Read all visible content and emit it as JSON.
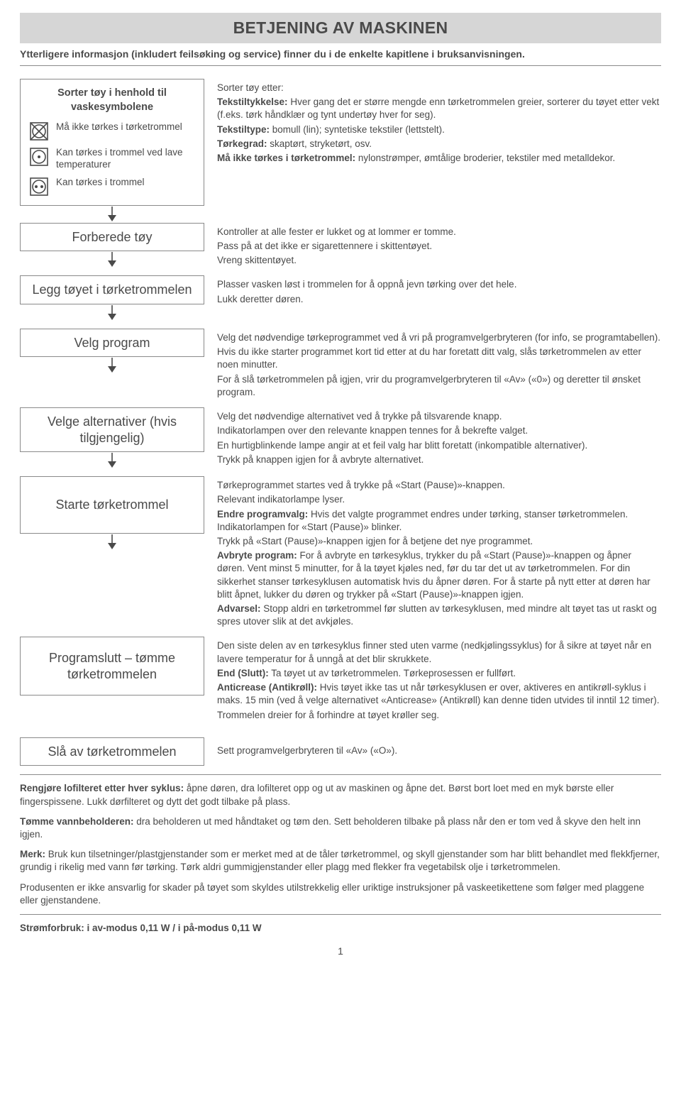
{
  "title": "BETJENING AV MASKINEN",
  "subtitle": "Ytterligere informasjon (inkludert feilsøking og service) finner du i de enkelte kapitlene i bruksanvisningen.",
  "sort_box": {
    "title": "Sorter tøy i henhold til vaskesymbolene",
    "rows": [
      {
        "label": "Må ikke tørkes i tørketrommel"
      },
      {
        "label": "Kan tørkes i trommel ved lave temperaturer"
      },
      {
        "label": "Kan tørkes i trommel"
      }
    ]
  },
  "sort_desc": {
    "intro": "Sorter tøy etter:",
    "l1a": "Tekstiltykkelse:",
    "l1b": " Hver gang det er større mengde enn tørketrommelen greier, sorterer du tøyet etter vekt (f.eks. tørk håndklær og tynt undertøy hver for seg).",
    "l2a": "Tekstiltype:",
    "l2b": " bomull (lin); syntetiske tekstiler (lettstelt).",
    "l3a": "Tørkegrad:",
    "l3b": " skaptørt, stryketørt, osv.",
    "l4a": "Må ikke tørkes i tørketrommel:",
    "l4b": " nylonstrømper, ømtålige broderier, tekstiler med metalldekor."
  },
  "steps": [
    {
      "label": "Forberede tøy",
      "desc": "Kontroller at alle fester er lukket og at lommer er tomme.\nPass på at det ikke er sigarettennere i skittentøyet.\nVreng skittentøyet."
    },
    {
      "label": "Legg tøyet i tørketrommelen",
      "desc": "Plasser vasken løst i trommelen for å oppnå jevn tørking over det hele.\nLukk deretter døren."
    },
    {
      "label": "Velg program",
      "desc": "Velg det nødvendige tørkeprogrammet ved å vri på programvelgerbryteren (for info, se programtabellen).\nHvis du ikke starter programmet kort tid etter at du har foretatt ditt valg, slås tørketrommelen av etter noen minutter.\nFor å slå tørketrommelen på igjen, vrir du programvelgerbryteren til «Av» («0») og deretter til ønsket program."
    },
    {
      "label": "Velge alternativer (hvis tilgjengelig)",
      "desc": "Velg det nødvendige alternativet ved å trykke på tilsvarende knapp.\nIndikatorlampen over den relevante knappen tennes for å bekrefte valget.\nEn hurtigblinkende lampe angir at et feil valg har blitt foretatt (inkompatible alternativer).\nTrykk på knappen igjen for å avbryte alternativet."
    }
  ],
  "start": {
    "label": "Starte tørketrommel",
    "l1": "Tørkeprogrammet startes ved å trykke på «Start (Pause)»-knappen.",
    "l2": "Relevant indikatorlampe lyser.",
    "l3a": "Endre programvalg:",
    "l3b": " Hvis det valgte programmet endres under tørking, stanser tørketrommelen. Indikatorlampen for «Start (Pause)» blinker.",
    "l4": "Trykk på «Start (Pause)»-knappen igjen for å betjene det nye programmet.",
    "l5a": "Avbryte program:",
    "l5b": " For å avbryte en tørkesyklus, trykker du på «Start (Pause)»-knappen og åpner døren. Vent minst 5 minutter, for å la tøyet kjøles ned, før du tar det ut av tørketrommelen. For din sikkerhet stanser tørkesyklusen automatisk hvis du åpner døren. For å starte på nytt etter at døren har blitt åpnet, lukker du døren og trykker på «Start (Pause)»-knappen igjen.",
    "l6a": "Advarsel:",
    "l6b": " Stopp aldri en tørketrommel før slutten av tørkesyklusen, med mindre alt tøyet tas ut raskt og spres utover slik at det avkjøles."
  },
  "end": {
    "label": "Programslutt – tømme tørketrommelen",
    "l1": "Den siste delen av en tørkesyklus finner sted uten varme (nedkjølingssyklus) for å sikre at tøyet når en lavere temperatur for å unngå at det blir skrukkete.",
    "l2a": "End (Slutt):",
    "l2b": " Ta tøyet ut av tørketrommelen. Tørkeprosessen er fullført.",
    "l3a": "Anticrease (Antikrøll):",
    "l3b": " Hvis tøyet ikke tas ut når tørkesyklusen er over, aktiveres en antikrøll-syklus i maks. 15 min (ved å velge alternativet «Anticrease» (Antikrøll) kan denne tiden utvides til inntil 12 timer).",
    "l4": "Trommelen dreier for å forhindre at tøyet krøller seg."
  },
  "off": {
    "label": "Slå av tørketrommelen",
    "desc": "Sett programvelgerbryteren til «Av» («O»)."
  },
  "bottom": {
    "p1a": "Rengjøre lofilteret etter hver syklus:",
    "p1b": " åpne døren, dra lofilteret opp og ut av maskinen og åpne det. Børst bort loet med en myk børste eller fingerspissene. Lukk dørfilteret og dytt det godt tilbake på plass.",
    "p2a": "Tømme vannbeholderen:",
    "p2b": " dra beholderen ut med håndtaket og tøm den. Sett beholderen tilbake på plass når den er tom ved å skyve den helt inn igjen.",
    "p3a": "Merk:",
    "p3b": " Bruk kun tilsetninger/plastgjenstander som er merket med at de tåler tørketrommel, og skyll gjenstander som har blitt behandlet med flekkfjerner, grundig i rikelig med vann før tørking. Tørk aldri gummigjenstander eller plagg med flekker fra vegetabilsk olje i tørketrommelen.",
    "p4": "Produsenten er ikke ansvarlig for skader på tøyet som skyldes utilstrekkelig eller uriktige instruksjoner på vaskeetikettene som følger med plaggene eller gjenstandene.",
    "p5": "Strømforbruk: i av-modus 0,11 W / i på-modus 0,11 W"
  },
  "page_number": "1",
  "colors": {
    "banner_bg": "#d6d6d6",
    "border": "#8a8a8a",
    "text": "#4a4a4a"
  }
}
